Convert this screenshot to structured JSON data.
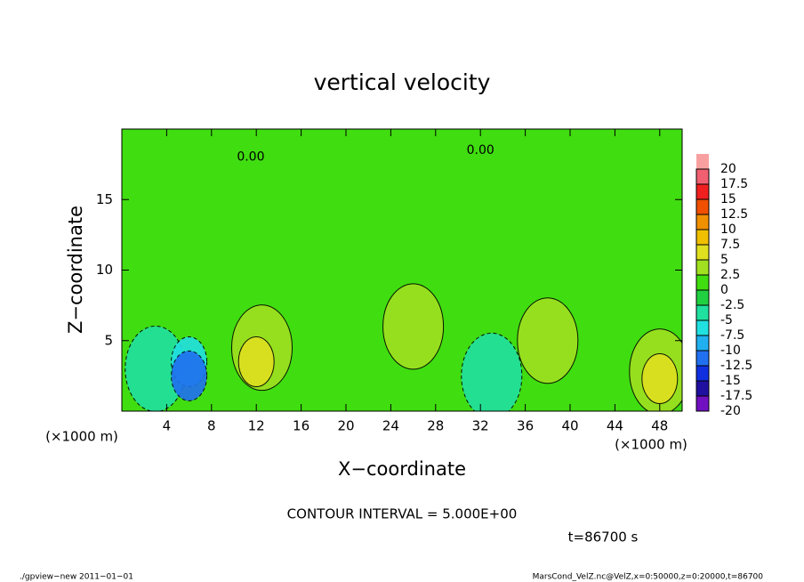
{
  "chart_data": {
    "type": "contour",
    "title": "vertical velocity",
    "x_label": "X−coordinate",
    "y_label": "Z−coordinate",
    "x_unit": "(×1000 m)",
    "y_unit": "(×1000 m)",
    "xlim": [
      0,
      50
    ],
    "ylim": [
      0,
      20
    ],
    "xticks": [
      4,
      8,
      12,
      16,
      20,
      24,
      28,
      32,
      36,
      40,
      44,
      48
    ],
    "yticks": [
      5,
      10,
      15
    ],
    "background_value": 1.5,
    "field": [
      {
        "x": 12.5,
        "z": 4.5,
        "value": 3.5
      },
      {
        "x": 12,
        "z": 3.5,
        "value": 6.5
      },
      {
        "x": 48,
        "z": 2.8,
        "value": 3.5
      },
      {
        "x": 48,
        "z": 2.3,
        "value": 6.5
      },
      {
        "x": 3,
        "z": 3,
        "value": -4
      },
      {
        "x": 6,
        "z": 3.5,
        "value": -6
      },
      {
        "x": 6,
        "z": 2.5,
        "value": -11
      },
      {
        "x": 33,
        "z": 2.5,
        "value": -4
      },
      {
        "x": 26,
        "z": 6,
        "value": 3.5
      },
      {
        "x": 38,
        "z": 5,
        "value": 3.5
      }
    ],
    "contour_labels": [
      "0.00",
      "0.00"
    ],
    "contour_label_positions": [
      {
        "x": 11.5,
        "z": 18
      },
      {
        "x": 32,
        "z": 18.5
      }
    ],
    "levels": [
      -20,
      -17.5,
      -15,
      -12.5,
      -10,
      -7.5,
      -5,
      -2.5,
      0,
      2.5,
      5,
      7.5,
      10,
      12.5,
      15,
      17.5,
      20
    ],
    "colors": [
      "#7010c0",
      "#2010a0",
      "#1030e0",
      "#2070f0",
      "#20b0f0",
      "#20e0e0",
      "#20e0a0",
      "#20d040",
      "#40dd10",
      "#a0e020",
      "#e0e020",
      "#f0c000",
      "#f09000",
      "#f05000",
      "#f02020",
      "#f06070",
      "#f8a0a0"
    ],
    "contour_interval_text": "CONTOUR INTERVAL = 5.000E+00",
    "time_text": "t=86700 s",
    "footer_left": "./gpview−new  2011−01−01",
    "footer_right": "MarsCond_VelZ.nc@VelZ,x=0:50000,z=0:20000,t=86700"
  }
}
